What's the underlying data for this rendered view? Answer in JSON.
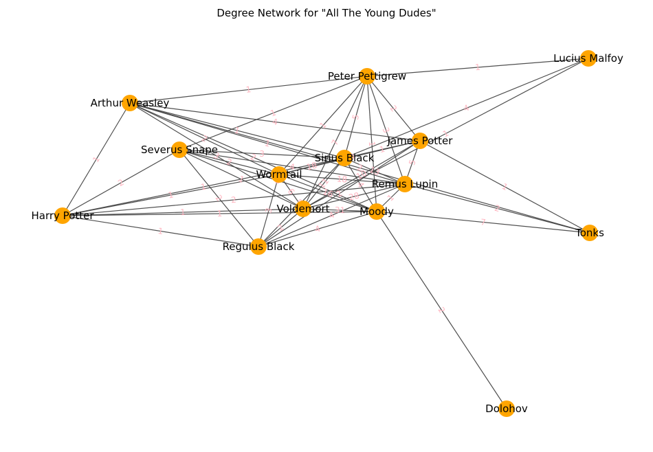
{
  "title": "Degree Network for \"All The Young Dudes\"",
  "node_color": "#ffa500",
  "edge_color": "#444444",
  "edge_label_color": "#ffb6c1",
  "nodes": [
    {
      "id": "lucius",
      "label": "Lucius Malfoy"
    },
    {
      "id": "peter",
      "label": "Peter Pettigrew"
    },
    {
      "id": "arthur",
      "label": "Arthur Weasley"
    },
    {
      "id": "james",
      "label": "James Potter"
    },
    {
      "id": "snape",
      "label": "Severus Snape"
    },
    {
      "id": "sirius",
      "label": "Sirius Black"
    },
    {
      "id": "wormtail",
      "label": "Wormtail"
    },
    {
      "id": "remus",
      "label": "Remus Lupin"
    },
    {
      "id": "harry",
      "label": "Harry Potter"
    },
    {
      "id": "voldemort",
      "label": "Voldemort"
    },
    {
      "id": "moody",
      "label": "Moody"
    },
    {
      "id": "tonks",
      "label": "Tonks"
    },
    {
      "id": "regulus",
      "label": "Regulus Black"
    },
    {
      "id": "dolohov",
      "label": "Dolohov"
    }
  ],
  "edges": [
    {
      "source": "peter",
      "target": "lucius",
      "weight": "1"
    },
    {
      "source": "peter",
      "target": "arthur",
      "weight": "1"
    },
    {
      "source": "peter",
      "target": "snape",
      "weight": "1"
    },
    {
      "source": "peter",
      "target": "wormtail",
      "weight": "1"
    },
    {
      "source": "peter",
      "target": "sirius",
      "weight": "5"
    },
    {
      "source": "peter",
      "target": "james",
      "weight": "2"
    },
    {
      "source": "peter",
      "target": "remus",
      "weight": "3"
    },
    {
      "source": "peter",
      "target": "voldemort",
      "weight": "7"
    },
    {
      "source": "peter",
      "target": "moody",
      "weight": "1"
    },
    {
      "source": "lucius",
      "target": "sirius",
      "weight": "4"
    },
    {
      "source": "lucius",
      "target": "voldemort",
      "weight": "1"
    },
    {
      "source": "arthur",
      "target": "harry",
      "weight": "1"
    },
    {
      "source": "arthur",
      "target": "sirius",
      "weight": "1"
    },
    {
      "source": "arthur",
      "target": "james",
      "weight": "4"
    },
    {
      "source": "arthur",
      "target": "wormtail",
      "weight": "2"
    },
    {
      "source": "arthur",
      "target": "voldemort",
      "weight": "3"
    },
    {
      "source": "arthur",
      "target": "remus",
      "weight": "1"
    },
    {
      "source": "arthur",
      "target": "tonks",
      "weight": "2"
    },
    {
      "source": "arthur",
      "target": "moody",
      "weight": "2"
    },
    {
      "source": "snape",
      "target": "harry",
      "weight": "2"
    },
    {
      "source": "snape",
      "target": "sirius",
      "weight": "3"
    },
    {
      "source": "snape",
      "target": "wormtail",
      "weight": "2"
    },
    {
      "source": "snape",
      "target": "voldemort",
      "weight": "1"
    },
    {
      "source": "snape",
      "target": "regulus",
      "weight": "2"
    },
    {
      "source": "snape",
      "target": "remus",
      "weight": "4"
    },
    {
      "source": "snape",
      "target": "moody",
      "weight": "3"
    },
    {
      "source": "james",
      "target": "sirius",
      "weight": "1"
    },
    {
      "source": "james",
      "target": "wormtail",
      "weight": "10"
    },
    {
      "source": "james",
      "target": "voldemort",
      "weight": "10"
    },
    {
      "source": "james",
      "target": "remus",
      "weight": "5"
    },
    {
      "source": "james",
      "target": "tonks",
      "weight": "1"
    },
    {
      "source": "james",
      "target": "regulus",
      "weight": "2"
    },
    {
      "source": "sirius",
      "target": "wormtail",
      "weight": "18"
    },
    {
      "source": "sirius",
      "target": "remus",
      "weight": "13"
    },
    {
      "source": "sirius",
      "target": "voldemort",
      "weight": "11"
    },
    {
      "source": "sirius",
      "target": "moody",
      "weight": "4"
    },
    {
      "source": "sirius",
      "target": "harry",
      "weight": "1"
    },
    {
      "source": "sirius",
      "target": "regulus",
      "weight": "2"
    },
    {
      "source": "wormtail",
      "target": "remus",
      "weight": "18"
    },
    {
      "source": "wormtail",
      "target": "voldemort",
      "weight": "6"
    },
    {
      "source": "wormtail",
      "target": "harry",
      "weight": "1"
    },
    {
      "source": "wormtail",
      "target": "moody",
      "weight": "16"
    },
    {
      "source": "wormtail",
      "target": "regulus",
      "weight": "3"
    },
    {
      "source": "remus",
      "target": "voldemort",
      "weight": "28"
    },
    {
      "source": "remus",
      "target": "harry",
      "weight": "2"
    },
    {
      "source": "remus",
      "target": "moody",
      "weight": "1"
    },
    {
      "source": "remus",
      "target": "tonks",
      "weight": "2"
    },
    {
      "source": "remus",
      "target": "regulus",
      "weight": "4"
    },
    {
      "source": "harry",
      "target": "voldemort",
      "weight": "1"
    },
    {
      "source": "harry",
      "target": "regulus",
      "weight": "1"
    },
    {
      "source": "harry",
      "target": "moody",
      "weight": "1"
    },
    {
      "source": "voldemort",
      "target": "moody",
      "weight": "31"
    },
    {
      "source": "voldemort",
      "target": "regulus",
      "weight": "2"
    },
    {
      "source": "moody",
      "target": "tonks",
      "weight": "7"
    },
    {
      "source": "moody",
      "target": "regulus",
      "weight": "4"
    },
    {
      "source": "moody",
      "target": "dolohov",
      "weight": "2"
    }
  ]
}
